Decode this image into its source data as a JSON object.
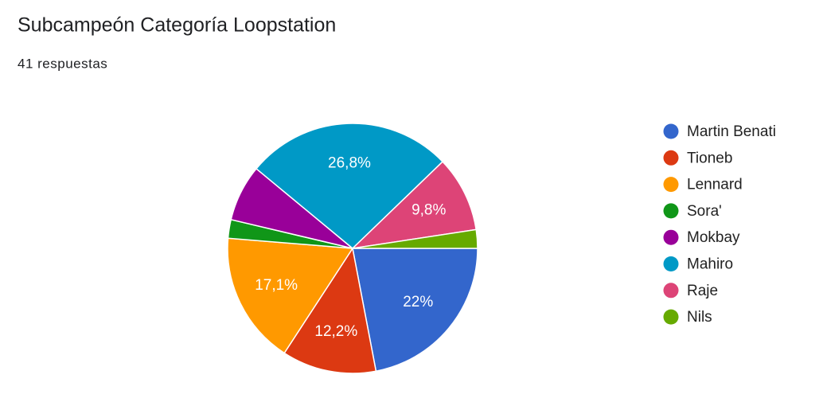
{
  "chart_data": {
    "type": "pie",
    "title": "Subcampeón Categoría Loopstation",
    "subtitle": "41 respuestas",
    "categories": [
      "Martin Benati",
      "Tioneb",
      "Lennard",
      "Sora'",
      "Mokbay",
      "Mahiro",
      "Raje",
      "Nils"
    ],
    "values": [
      22,
      12.2,
      17.1,
      2.4,
      7.3,
      26.8,
      9.8,
      2.4
    ],
    "value_labels": [
      "22%",
      "12,2%",
      "17,1%",
      null,
      null,
      "26,8%",
      "9,8%",
      null
    ],
    "colors": [
      "#3366cc",
      "#dc3912",
      "#ff9900",
      "#109618",
      "#990099",
      "#0099c6",
      "#dd4477",
      "#66aa00"
    ],
    "legend": "right"
  }
}
